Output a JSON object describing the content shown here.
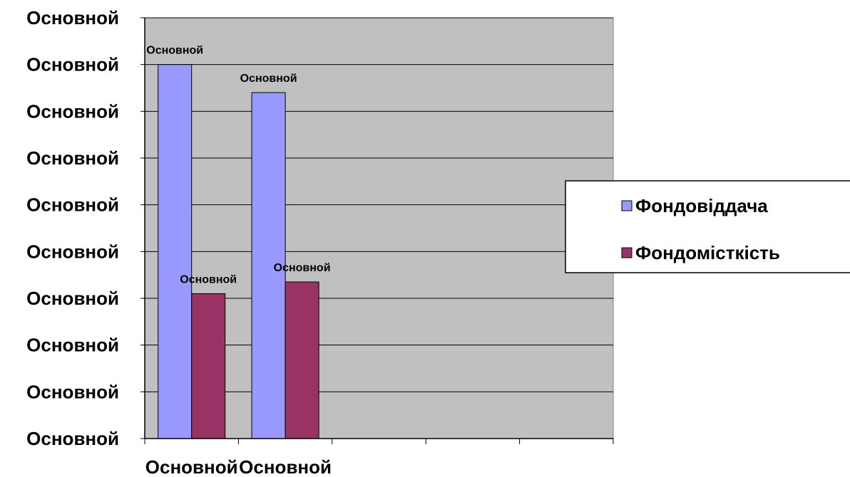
{
  "chart_data": {
    "type": "bar",
    "title": "",
    "xlabel": "",
    "ylabel": "",
    "ylim": [
      0,
      9
    ],
    "grid": true,
    "legend_position": "right",
    "y_tick_labels": [
      "Основной",
      "Основной",
      "Основной",
      "Основной",
      "Основной",
      "Основной",
      "Основной",
      "Основной",
      "Основной",
      "Основной"
    ],
    "categories": [
      "Основной",
      "Основной",
      "",
      "",
      ""
    ],
    "series": [
      {
        "name": "Фондовіддача",
        "color": "#9999ff",
        "values": [
          8.0,
          7.4,
          null,
          null,
          null
        ],
        "data_labels": [
          "Основной",
          "Основной",
          "",
          "",
          ""
        ]
      },
      {
        "name": "Фондомісткість",
        "color": "#993366",
        "values": [
          3.1,
          3.35,
          null,
          null,
          null
        ],
        "data_labels": [
          "Основной",
          "Основной",
          "",
          "",
          ""
        ]
      }
    ],
    "plot_background": "#c0c0c0"
  }
}
